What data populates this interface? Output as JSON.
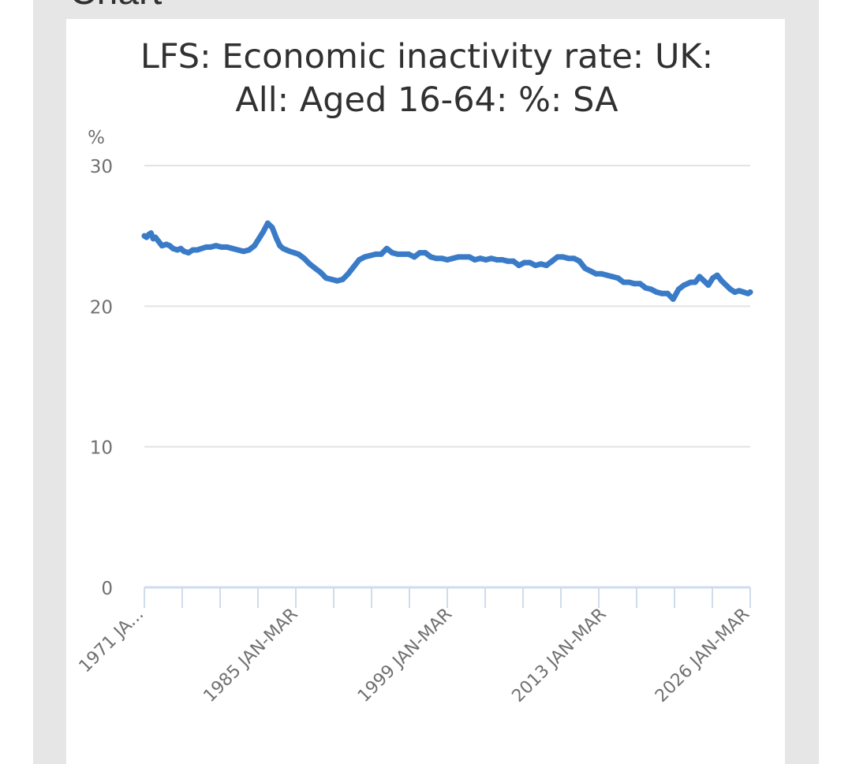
{
  "page": {
    "section_heading": "Chart"
  },
  "chart_data": {
    "type": "line",
    "title_lines": [
      "LFS: Economic inactivity rate: UK:",
      "All: Aged 16-64: %: SA"
    ],
    "y_unit": "%",
    "ylim": [
      0,
      30
    ],
    "y_ticks": [
      0,
      10,
      20,
      30
    ],
    "x_tick_labels": [
      "1971 JA...",
      "1985 JAN-MAR",
      "1999 JAN-MAR",
      "2013 JAN-MAR",
      "2026 JAN-MAR"
    ],
    "x_tick_label_years": [
      1971,
      1985,
      1999,
      2013,
      2026
    ],
    "x_range": [
      1971,
      2026
    ],
    "grid": true,
    "series": [
      {
        "color": "#3a7bc8",
        "x": [
          1971.0,
          1971.2,
          1971.4,
          1971.6,
          1971.8,
          1972.0,
          1972.3,
          1972.6,
          1973.0,
          1973.3,
          1973.6,
          1974.0,
          1974.3,
          1974.6,
          1975.0,
          1975.4,
          1975.8,
          1976.2,
          1976.6,
          1977.0,
          1977.5,
          1978.0,
          1978.5,
          1979.0,
          1979.5,
          1980.0,
          1980.5,
          1981.0,
          1981.4,
          1981.8,
          1982.2,
          1982.6,
          1983.0,
          1983.3,
          1983.6,
          1983.9,
          1984.2,
          1984.6,
          1985.0,
          1985.5,
          1986.0,
          1986.5,
          1987.0,
          1987.5,
          1988.0,
          1988.5,
          1989.0,
          1989.5,
          1990.0,
          1990.5,
          1991.0,
          1991.5,
          1992.0,
          1992.5,
          1993.0,
          1993.5,
          1994.0,
          1994.5,
          1995.0,
          1995.5,
          1996.0,
          1996.5,
          1997.0,
          1997.5,
          1998.0,
          1998.5,
          1999.0,
          1999.5,
          2000.0,
          2000.5,
          2001.0,
          2001.5,
          2002.0,
          2002.5,
          2003.0,
          2003.5,
          2004.0,
          2004.5,
          2005.0,
          2005.5,
          2006.0,
          2006.5,
          2007.0,
          2007.5,
          2008.0,
          2008.5,
          2009.0,
          2009.5,
          2010.0,
          2010.5,
          2011.0,
          2011.5,
          2012.0,
          2012.5,
          2013.0,
          2013.5,
          2014.0,
          2014.5,
          2015.0,
          2015.5,
          2016.0,
          2016.5,
          2017.0,
          2017.5,
          2018.0,
          2018.5,
          2019.0,
          2019.5,
          2020.0,
          2020.3,
          2020.6,
          2021.0,
          2021.4,
          2021.8,
          2022.2,
          2022.6,
          2023.0,
          2023.4,
          2023.8,
          2024.2,
          2024.6,
          2025.0,
          2025.4,
          2025.8,
          2026.0
        ],
        "values": [
          25.0,
          24.9,
          25.1,
          25.2,
          24.8,
          24.9,
          24.6,
          24.3,
          24.4,
          24.3,
          24.1,
          24.0,
          24.1,
          23.9,
          23.8,
          24.0,
          24.0,
          24.1,
          24.2,
          24.2,
          24.3,
          24.2,
          24.2,
          24.1,
          24.0,
          23.9,
          24.0,
          24.3,
          24.8,
          25.3,
          25.9,
          25.6,
          24.8,
          24.3,
          24.1,
          24.0,
          23.9,
          23.8,
          23.7,
          23.4,
          23.0,
          22.7,
          22.4,
          22.0,
          21.9,
          21.8,
          21.9,
          22.3,
          22.8,
          23.3,
          23.5,
          23.6,
          23.7,
          23.7,
          24.1,
          23.8,
          23.7,
          23.7,
          23.7,
          23.5,
          23.8,
          23.8,
          23.5,
          23.4,
          23.4,
          23.3,
          23.4,
          23.5,
          23.5,
          23.5,
          23.3,
          23.4,
          23.3,
          23.4,
          23.3,
          23.3,
          23.2,
          23.2,
          22.9,
          23.1,
          23.1,
          22.9,
          23.0,
          22.9,
          23.2,
          23.5,
          23.5,
          23.4,
          23.4,
          23.2,
          22.7,
          22.5,
          22.3,
          22.3,
          22.2,
          22.1,
          22.0,
          21.7,
          21.7,
          21.6,
          21.6,
          21.3,
          21.2,
          21.0,
          20.9,
          20.9,
          20.5,
          21.2,
          21.5,
          21.6,
          21.7,
          21.7,
          22.1,
          21.8,
          21.5,
          22.0,
          22.2,
          21.8,
          21.5,
          21.2,
          21.0,
          21.1,
          21.0,
          20.9,
          21.0
        ]
      }
    ]
  }
}
